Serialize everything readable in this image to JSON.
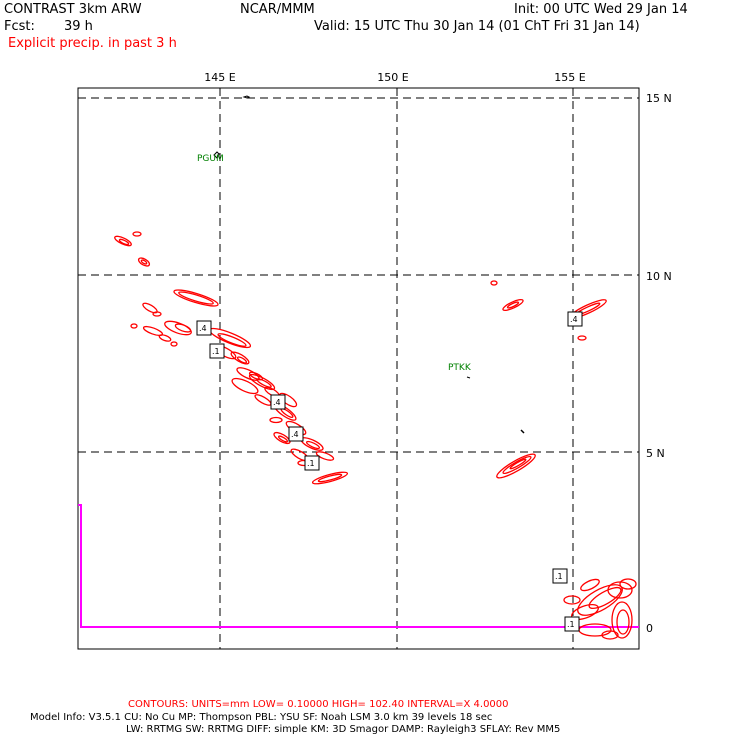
{
  "header": {
    "model_name": "CONTRAST  3km ARW",
    "org": "NCAR/MMM",
    "init": "Init: 00 UTC Wed 29 Jan 14",
    "fcst_label": "Fcst:",
    "fcst_value": "39 h",
    "valid": "Valid: 15 UTC Thu 30 Jan 14 (01 ChT Fri 31 Jan 14)",
    "field": "Explicit precip. in past 3 h"
  },
  "map": {
    "lon_labels": [
      "145 E",
      "150 E",
      "155 E"
    ],
    "lat_labels": [
      "15 N",
      "10 N",
      "5 N",
      "0"
    ],
    "stations": [
      "PGUM",
      "PTKK"
    ],
    "contour_labels": [
      ".4",
      ".1",
      ".4",
      ".4",
      ".1",
      ".4",
      ".1",
      ".1"
    ],
    "colors": {
      "contour": "#ff0000",
      "station": "#008000",
      "boundary": "#ff00ff",
      "grid": "#000000"
    }
  },
  "footer": {
    "contours": "CONTOURS:  UNITS=mm  LOW= 0.10000      HIGH=  102.40      INTERVAL=X  4.0000",
    "model_info_1": "Model Info: V3.5.1     CU: No Cu      MP: Thompson      PBL: YSU        SF: Noah LSM      3.0 km   39 levels    18 sec",
    "model_info_2": "LW: RRTMG     SW: RRTMG   DIFF: simple KM: 3D Smagor DAMP: Rayleigh3   SFLAY: Rev MM5"
  }
}
